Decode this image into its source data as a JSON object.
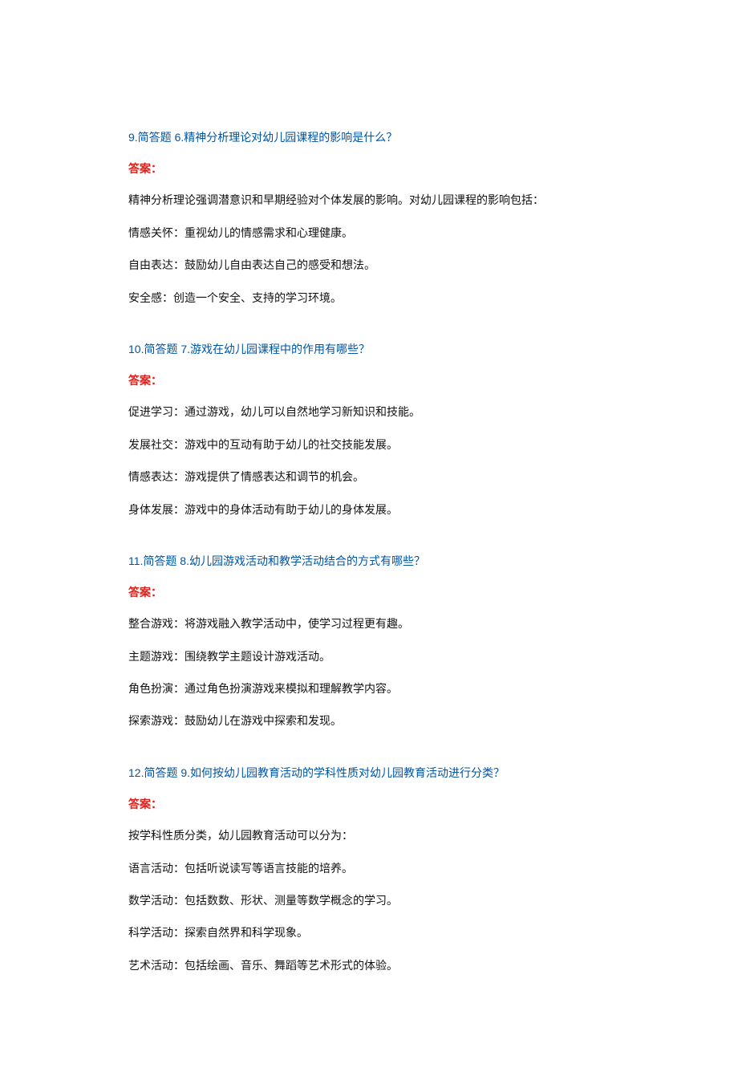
{
  "colors": {
    "question": "#0054a5",
    "answer_label": "#d8231c",
    "body_text": "#111111",
    "background": "#ffffff"
  },
  "typography": {
    "font_family": "Microsoft YaHei",
    "question_fontsize": 14,
    "answer_label_fontsize": 14,
    "body_fontsize": 14,
    "answer_label_weight": "bold"
  },
  "answer_label_text": "答案：",
  "questions": [
    {
      "title": "9.简答题 6.精神分析理论对幼儿园课程的影响是什么？",
      "lines": [
        "精神分析理论强调潜意识和早期经验对个体发展的影响。对幼儿园课程的影响包括：",
        "情感关怀：重视幼儿的情感需求和心理健康。",
        "自由表达：鼓励幼儿自由表达自己的感受和想法。",
        "安全感：创造一个安全、支持的学习环境。"
      ]
    },
    {
      "title": "10.简答题 7.游戏在幼儿园课程中的作用有哪些？",
      "lines": [
        "促进学习：通过游戏，幼儿可以自然地学习新知识和技能。",
        "发展社交：游戏中的互动有助于幼儿的社交技能发展。",
        "情感表达：游戏提供了情感表达和调节的机会。",
        "身体发展：游戏中的身体活动有助于幼儿的身体发展。"
      ]
    },
    {
      "title": "11.简答题 8.幼儿园游戏活动和教学活动结合的方式有哪些？",
      "lines": [
        "整合游戏：将游戏融入教学活动中，使学习过程更有趣。",
        "主题游戏：围绕教学主题设计游戏活动。",
        "角色扮演：通过角色扮演游戏来模拟和理解教学内容。",
        "探索游戏：鼓励幼儿在游戏中探索和发现。"
      ]
    },
    {
      "title": "12.简答题 9.如何按幼儿园教育活动的学科性质对幼儿园教育活动进行分类？",
      "lines": [
        "按学科性质分类，幼儿园教育活动可以分为：",
        "语言活动：包括听说读写等语言技能的培养。",
        "数学活动：包括数数、形状、测量等数学概念的学习。",
        "科学活动：探索自然界和科学现象。",
        "艺术活动：包括绘画、音乐、舞蹈等艺术形式的体验。"
      ]
    }
  ]
}
